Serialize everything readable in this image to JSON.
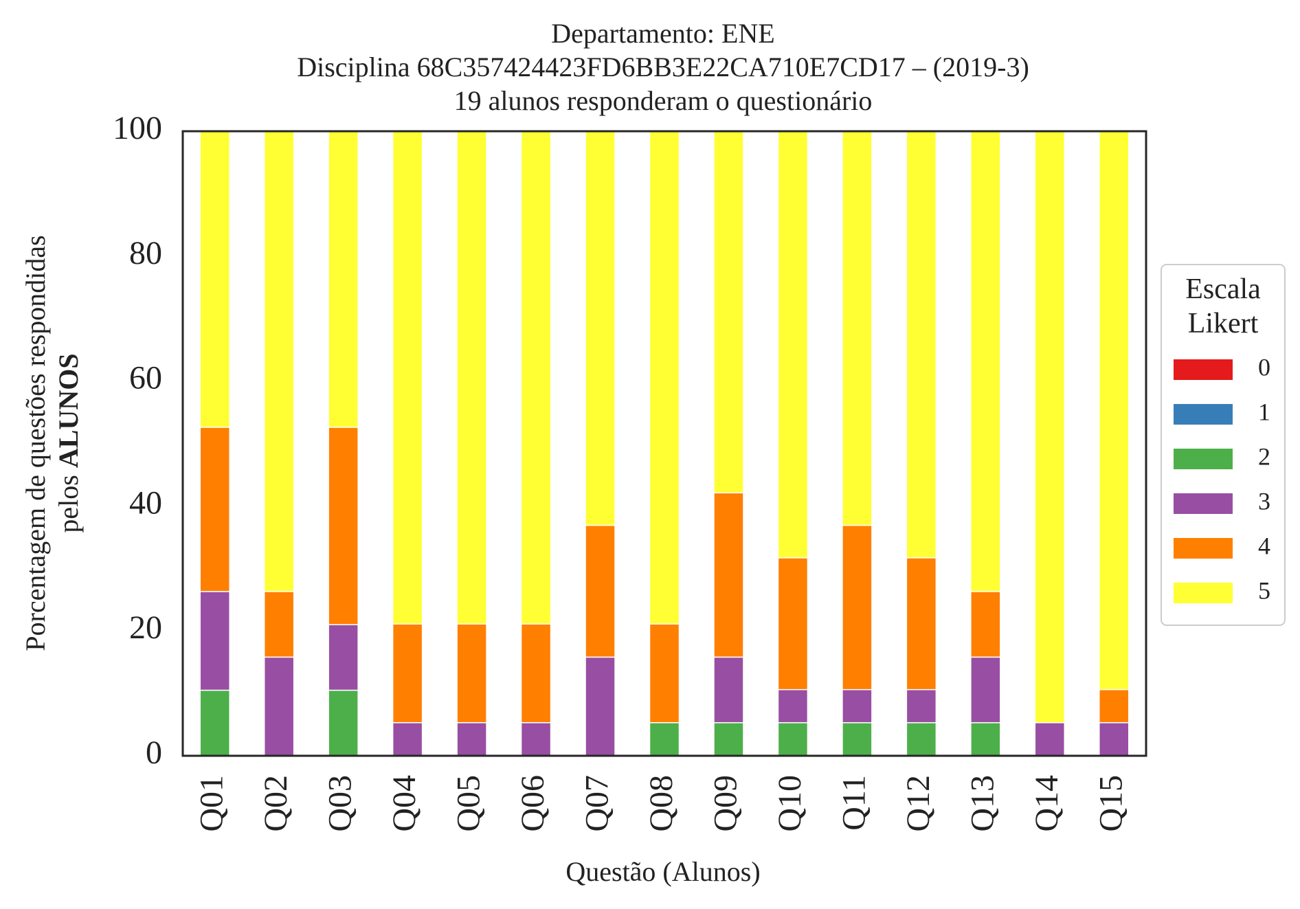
{
  "chart_data": {
    "type": "bar",
    "stacked": true,
    "title_lines": [
      "Departamento: ENE",
      "Disciplina 68C357424423FD6BB3E22CA710E7CD17 – (2019-3)",
      "19 alunos responderam o questionário"
    ],
    "xlabel": "Questão (Alunos)",
    "ylabel_line1": "Porcentagem de questões respondidas",
    "ylabel_line2_prefix": "pelos ",
    "ylabel_line2_bold": "ALUNOS",
    "ylim": [
      0,
      100
    ],
    "yticks": [
      0,
      20,
      40,
      60,
      80,
      100
    ],
    "categories": [
      "Q01",
      "Q02",
      "Q03",
      "Q04",
      "Q05",
      "Q06",
      "Q07",
      "Q08",
      "Q09",
      "Q10",
      "Q11",
      "Q12",
      "Q13",
      "Q14",
      "Q15"
    ],
    "legend": {
      "title_line1": "Escala",
      "title_line2": "Likert",
      "placement": "right"
    },
    "series": [
      {
        "name": "0",
        "color": "#e41a1c",
        "values": [
          0,
          0,
          0,
          0,
          0,
          0,
          0,
          0,
          0,
          0,
          0,
          0,
          0,
          0,
          0
        ]
      },
      {
        "name": "1",
        "color": "#377eb8",
        "values": [
          0,
          0,
          0,
          0,
          0,
          0,
          0,
          0,
          0,
          0,
          0,
          0,
          0,
          0,
          0
        ]
      },
      {
        "name": "2",
        "color": "#4daf4a",
        "values": [
          10.5,
          0,
          10.5,
          0,
          0,
          0,
          0,
          5.3,
          5.3,
          5.3,
          5.3,
          5.3,
          5.3,
          0,
          0
        ]
      },
      {
        "name": "3",
        "color": "#984ea3",
        "values": [
          15.8,
          15.8,
          10.5,
          5.3,
          5.3,
          5.3,
          15.8,
          0,
          10.5,
          5.3,
          5.3,
          5.3,
          10.5,
          5.3,
          5.3
        ]
      },
      {
        "name": "4",
        "color": "#ff7f00",
        "values": [
          26.3,
          10.5,
          31.6,
          15.8,
          15.8,
          15.8,
          21.1,
          15.8,
          26.3,
          21.1,
          26.3,
          21.1,
          10.5,
          0,
          5.3
        ]
      },
      {
        "name": "5",
        "color": "#ffff33",
        "values": [
          47.4,
          73.7,
          47.4,
          78.9,
          78.9,
          78.9,
          63.1,
          78.9,
          57.9,
          68.3,
          63.1,
          68.3,
          73.7,
          94.7,
          89.4
        ]
      }
    ]
  }
}
